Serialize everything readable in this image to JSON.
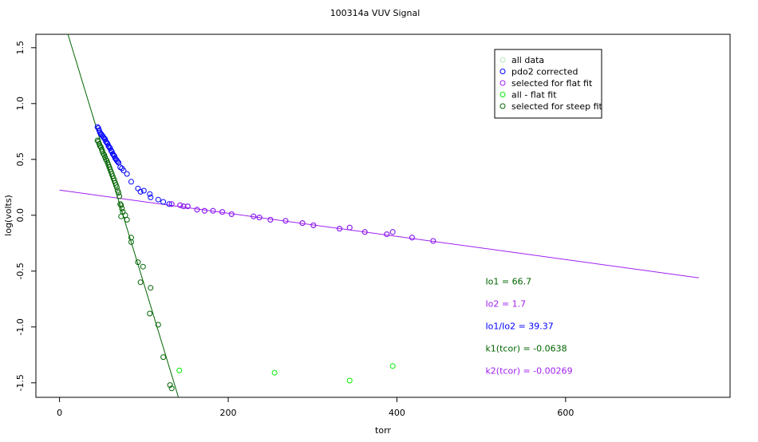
{
  "chart_data": {
    "type": "scatter",
    "title": "100314a   VUV Signal",
    "xlabel": "torr",
    "ylabel": "log(volts)",
    "xlim": [
      -28,
      795
    ],
    "ylim": [
      -1.63,
      1.62
    ],
    "x_ticks": [
      {
        "value": 0,
        "label": "0"
      },
      {
        "value": 200,
        "label": "200"
      },
      {
        "value": 400,
        "label": "400"
      },
      {
        "value": 600,
        "label": "600"
      }
    ],
    "y_ticks": [
      {
        "value": 1.5,
        "label": "1.5"
      },
      {
        "value": 1.0,
        "label": "1.0"
      },
      {
        "value": 0.5,
        "label": "0.5"
      },
      {
        "value": 0.0,
        "label": "0.0"
      },
      {
        "value": -0.5,
        "label": "-0.5"
      },
      {
        "value": -1.0,
        "label": "-1.0"
      },
      {
        "value": -1.5,
        "label": "-1.5"
      }
    ],
    "grid": false,
    "legend_position": "top-right",
    "colors": {
      "all_data": "#b8e6b8",
      "pdo2_corrected": "#0000ff",
      "flat_fit": "#a020f0",
      "all_minus_flat": "#00ee00",
      "steep_fit": "#006400"
    },
    "series": [
      {
        "name": "all data",
        "color": "#b8e6b8",
        "points": []
      },
      {
        "name": "pdo2 corrected",
        "color": "#0000ff",
        "points": [
          [
            45,
            0.79
          ],
          [
            46,
            0.78
          ],
          [
            47,
            0.76
          ],
          [
            48,
            0.74
          ],
          [
            49,
            0.73
          ],
          [
            50,
            0.72
          ],
          [
            51,
            0.71
          ],
          [
            52,
            0.7
          ],
          [
            53,
            0.69
          ],
          [
            54,
            0.68
          ],
          [
            55,
            0.66
          ],
          [
            56,
            0.65
          ],
          [
            57,
            0.64
          ],
          [
            58,
            0.62
          ],
          [
            59,
            0.61
          ],
          [
            60,
            0.6
          ],
          [
            61,
            0.58
          ],
          [
            62,
            0.57
          ],
          [
            63,
            0.55
          ],
          [
            64,
            0.54
          ],
          [
            65,
            0.53
          ],
          [
            66,
            0.51
          ],
          [
            67,
            0.5
          ],
          [
            68,
            0.49
          ],
          [
            69,
            0.48
          ],
          [
            70,
            0.47
          ],
          [
            72,
            0.43
          ],
          [
            74,
            0.42
          ],
          [
            76,
            0.4
          ],
          [
            80,
            0.37
          ],
          [
            85,
            0.3
          ],
          [
            93,
            0.24
          ],
          [
            96,
            0.21
          ],
          [
            100,
            0.22
          ],
          [
            107,
            0.19
          ],
          [
            108,
            0.16
          ],
          [
            117,
            0.14
          ],
          [
            123,
            0.12
          ],
          [
            130,
            0.1
          ],
          [
            133,
            0.1
          ],
          [
            143,
            0.09
          ],
          [
            147,
            0.08
          ],
          [
            152,
            0.08
          ],
          [
            163,
            0.05
          ],
          [
            172,
            0.04
          ],
          [
            182,
            0.04
          ],
          [
            193,
            0.03
          ],
          [
            204,
            0.01
          ],
          [
            230,
            -0.01
          ],
          [
            237,
            -0.02
          ],
          [
            250,
            -0.04
          ],
          [
            268,
            -0.05
          ],
          [
            288,
            -0.07
          ],
          [
            301,
            -0.09
          ],
          [
            332,
            -0.12
          ],
          [
            344,
            -0.11
          ],
          [
            362,
            -0.15
          ],
          [
            388,
            -0.17
          ],
          [
            395,
            -0.15
          ],
          [
            418,
            -0.2
          ],
          [
            443,
            -0.23
          ]
        ]
      },
      {
        "name": "selected for flat fit",
        "color": "#a020f0",
        "points": [
          [
            133,
            0.1
          ],
          [
            143,
            0.09
          ],
          [
            147,
            0.08
          ],
          [
            152,
            0.08
          ],
          [
            163,
            0.05
          ],
          [
            172,
            0.04
          ],
          [
            182,
            0.04
          ],
          [
            193,
            0.03
          ],
          [
            204,
            0.01
          ],
          [
            230,
            -0.01
          ],
          [
            237,
            -0.02
          ],
          [
            250,
            -0.04
          ],
          [
            268,
            -0.05
          ],
          [
            288,
            -0.07
          ],
          [
            301,
            -0.09
          ],
          [
            332,
            -0.12
          ],
          [
            344,
            -0.11
          ],
          [
            362,
            -0.15
          ],
          [
            388,
            -0.17
          ],
          [
            395,
            -0.15
          ],
          [
            418,
            -0.2
          ],
          [
            443,
            -0.23
          ]
        ]
      },
      {
        "name": "all - flat fit",
        "color": "#00ee00",
        "points": [
          [
            142,
            -1.39
          ],
          [
            255,
            -1.41
          ],
          [
            344,
            -1.48
          ],
          [
            395,
            -1.35
          ]
        ]
      },
      {
        "name": "selected for steep fit",
        "color": "#006400",
        "points": [
          [
            45,
            0.67
          ],
          [
            46,
            0.66
          ],
          [
            47,
            0.64
          ],
          [
            48,
            0.62
          ],
          [
            49,
            0.61
          ],
          [
            50,
            0.59
          ],
          [
            51,
            0.57
          ],
          [
            52,
            0.55
          ],
          [
            53,
            0.54
          ],
          [
            54,
            0.52
          ],
          [
            55,
            0.5
          ],
          [
            56,
            0.49
          ],
          [
            57,
            0.47
          ],
          [
            58,
            0.45
          ],
          [
            59,
            0.43
          ],
          [
            60,
            0.41
          ],
          [
            61,
            0.39
          ],
          [
            62,
            0.37
          ],
          [
            63,
            0.35
          ],
          [
            64,
            0.33
          ],
          [
            65,
            0.31
          ],
          [
            66,
            0.29
          ],
          [
            67,
            0.27
          ],
          [
            68,
            0.25
          ],
          [
            69,
            0.22
          ],
          [
            70,
            0.2
          ],
          [
            71,
            0.17
          ],
          [
            72,
            0.1
          ],
          [
            73,
            0.09
          ],
          [
            74,
            0.06
          ],
          [
            75,
            0.03
          ],
          [
            73,
            -0.01
          ],
          [
            78,
            0.0
          ],
          [
            80,
            -0.04
          ],
          [
            85,
            -0.2
          ],
          [
            85,
            -0.24
          ],
          [
            93,
            -0.42
          ],
          [
            96,
            -0.6
          ],
          [
            99,
            -0.46
          ],
          [
            108,
            -0.65
          ],
          [
            107,
            -0.88
          ],
          [
            117,
            -0.98
          ],
          [
            123,
            -1.27
          ],
          [
            131,
            -1.52
          ],
          [
            133,
            -1.55
          ]
        ]
      }
    ],
    "fit_lines": [
      {
        "name": "flat fit",
        "color": "#a020f0",
        "x0": 0,
        "y0": 0.225,
        "x1": 758,
        "y1": -0.56
      },
      {
        "name": "steep fit",
        "color": "#006400",
        "x0": 10,
        "y0": 1.62,
        "x1": 141,
        "y1": -1.63
      }
    ],
    "annotations": [
      {
        "text": "Io1 =  66.7",
        "color": "#006400",
        "x": 505,
        "y": -0.59
      },
      {
        "text": "Io2 =  1.7",
        "color": "#a020f0",
        "x": 505,
        "y": -0.79
      },
      {
        "text": "Io1/Io2 =  39.37",
        "color": "#0000ff",
        "x": 505,
        "y": -0.99
      },
      {
        "text": "k1(tcor) =  -0.0638",
        "color": "#006400",
        "x": 505,
        "y": -1.19
      },
      {
        "text": "k2(tcor) =  -0.00269",
        "color": "#a020f0",
        "x": 505,
        "y": -1.39
      }
    ]
  }
}
